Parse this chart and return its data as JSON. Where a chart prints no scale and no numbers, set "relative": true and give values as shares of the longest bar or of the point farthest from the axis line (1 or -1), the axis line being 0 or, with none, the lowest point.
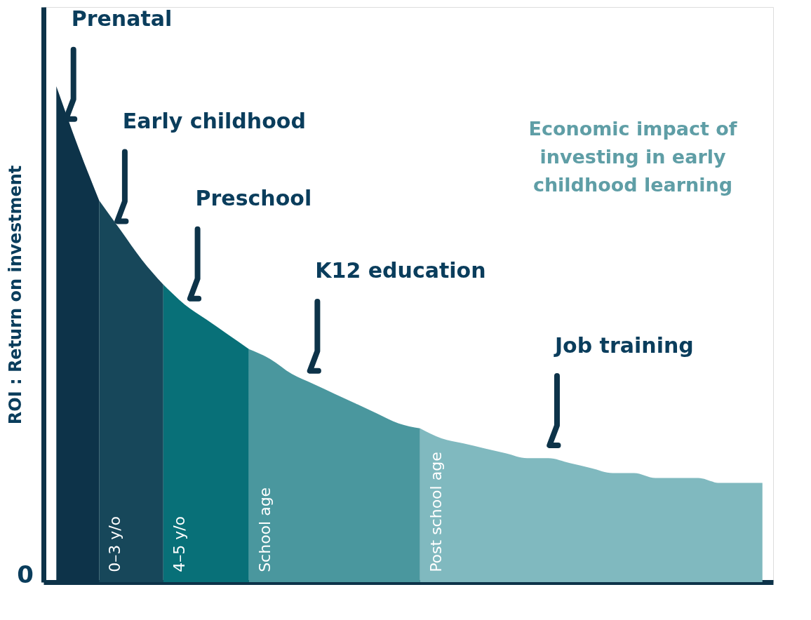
{
  "chart_data": {
    "type": "area",
    "relative": true,
    "title": "Economic impact of investing in early childhood learning",
    "ylabel": "ROI : Return on investment",
    "categories": [
      null,
      null,
      null,
      null,
      null,
      null,
      null,
      null,
      null,
      null,
      null,
      null,
      null,
      null,
      null,
      null,
      null,
      null,
      null,
      null,
      null,
      null,
      null,
      null,
      null,
      null,
      null,
      null,
      null,
      null,
      null,
      null,
      null,
      null
    ],
    "series": [
      {
        "color": "#0d3349",
        "values": [
          1.0,
          0.88,
          0.77,
          null,
          null,
          null,
          null,
          null,
          null,
          null,
          null,
          null,
          null,
          null,
          null,
          null,
          null,
          null,
          null,
          null,
          null,
          null,
          null,
          null,
          null,
          null,
          null,
          null,
          null,
          null,
          null,
          null,
          null,
          null
        ]
      },
      {
        "name": "0–3 y/o",
        "color": "#17475a",
        "values": [
          null,
          null,
          0.77,
          0.71,
          0.65,
          0.6,
          null,
          null,
          null,
          null,
          null,
          null,
          null,
          null,
          null,
          null,
          null,
          null,
          null,
          null,
          null,
          null,
          null,
          null,
          null,
          null,
          null,
          null,
          null,
          null,
          null,
          null,
          null,
          null
        ]
      },
      {
        "name": "4–5 y/o",
        "color": "#087078",
        "values": [
          null,
          null,
          null,
          null,
          null,
          0.6,
          0.56,
          0.53,
          0.5,
          0.47,
          null,
          null,
          null,
          null,
          null,
          null,
          null,
          null,
          null,
          null,
          null,
          null,
          null,
          null,
          null,
          null,
          null,
          null,
          null,
          null,
          null,
          null,
          null,
          null
        ]
      },
      {
        "name": "School age",
        "color": "#4a979e",
        "values": [
          null,
          null,
          null,
          null,
          null,
          null,
          null,
          null,
          null,
          0.47,
          0.45,
          0.42,
          0.4,
          0.38,
          0.36,
          0.34,
          0.32,
          0.31,
          null,
          null,
          null,
          null,
          null,
          null,
          null,
          null,
          null,
          null,
          null,
          null,
          null,
          null,
          null,
          null
        ]
      },
      {
        "name": "Post school age",
        "color": "#80b9bf",
        "values": [
          null,
          null,
          null,
          null,
          null,
          null,
          null,
          null,
          null,
          null,
          null,
          null,
          null,
          null,
          null,
          null,
          null,
          0.31,
          0.29,
          0.28,
          0.27,
          0.26,
          0.25,
          0.25,
          0.24,
          0.23,
          0.22,
          0.22,
          0.21,
          0.21,
          0.21,
          0.2,
          0.2,
          0.2
        ]
      }
    ],
    "annotations": [
      "Prenatal",
      "Early childhood",
      "Preschool",
      "K12 education",
      "Job training",
      "0"
    ],
    "legend": false,
    "grid": false
  }
}
